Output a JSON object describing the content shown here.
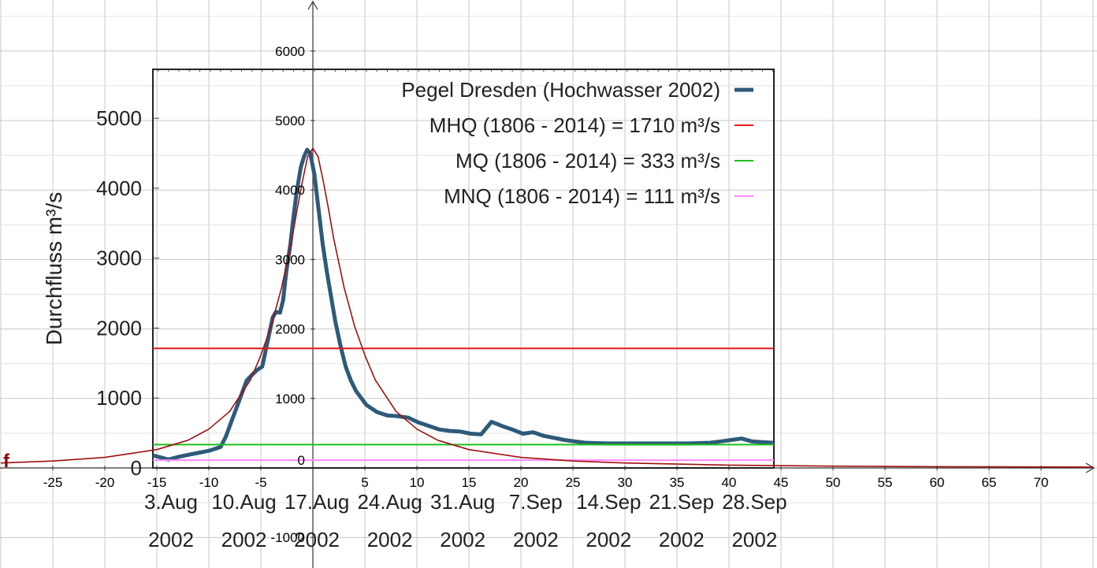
{
  "chart_data": [
    {
      "type": "line",
      "title": "",
      "ylabel": "Durchfluss m³/s",
      "xlabel": "",
      "xlim": [
        -15.5,
        44.1
      ],
      "ylim": [
        0,
        5700
      ],
      "yticks": [
        "0",
        "1000",
        "2000",
        "3000",
        "4000",
        "5000"
      ],
      "xtick_labels": [
        {
          "x": -15.5,
          "line1": "3.Aug",
          "line2": "2002"
        },
        {
          "x": -8.5,
          "line1": "10.Aug",
          "line2": "2002"
        },
        {
          "x": -1.5,
          "line1": "17.Aug",
          "line2": "2002"
        },
        {
          "x": 5.5,
          "line1": "24.Aug",
          "line2": "2002"
        },
        {
          "x": 12.5,
          "line1": "31.Aug",
          "line2": "2002"
        },
        {
          "x": 19.5,
          "line1": "7.Sep",
          "line2": "2002"
        },
        {
          "x": 26.5,
          "line1": "14.Sep",
          "line2": "2002"
        },
        {
          "x": 33.5,
          "line1": "21.Sep",
          "line2": "2002"
        },
        {
          "x": 40.5,
          "line1": "28.Sep",
          "line2": "2002"
        }
      ],
      "legend_position": "top-right",
      "grid": false,
      "series": [
        {
          "name": "Pegel Dresden (Hochwasser 2002)",
          "color": "#2e5a7a",
          "x": [
            -15.5,
            -14,
            -13,
            -12,
            -11,
            -10,
            -9,
            -8.5,
            -8,
            -7.5,
            -7,
            -6.5,
            -6,
            -5.5,
            -5,
            -4.5,
            -4,
            -3.7,
            -3.3,
            -3,
            -2.7,
            -2.3,
            -2,
            -1.7,
            -1.3,
            -1,
            -0.7,
            -0.4,
            0,
            0.4,
            0.8,
            1.2,
            1.6,
            2,
            2.5,
            3,
            3.5,
            4,
            4.5,
            5,
            6,
            7,
            8,
            9,
            10,
            11,
            12,
            13,
            14,
            15,
            16,
            17,
            18,
            19,
            20,
            21,
            22,
            23,
            24,
            25,
            26,
            28,
            30,
            32,
            34,
            36,
            38,
            39,
            40,
            41,
            42,
            43,
            44
          ],
          "y": [
            180,
            120,
            160,
            190,
            220,
            250,
            300,
            450,
            650,
            850,
            1050,
            1250,
            1330,
            1400,
            1450,
            1800,
            2150,
            2230,
            2220,
            2400,
            2800,
            3200,
            3600,
            3950,
            4300,
            4450,
            4550,
            4500,
            4200,
            3700,
            3200,
            2800,
            2450,
            2100,
            1750,
            1450,
            1250,
            1100,
            1000,
            900,
            800,
            750,
            740,
            720,
            650,
            600,
            550,
            530,
            520,
            490,
            480,
            660,
            600,
            550,
            490,
            510,
            460,
            430,
            400,
            380,
            360,
            350,
            350,
            350,
            350,
            350,
            360,
            380,
            400,
            420,
            380,
            370,
            360
          ]
        },
        {
          "name": "MHQ (1806 - 2014) = 1710 m³/s",
          "color": "#e11a1a",
          "x": [
            -15.5,
            44.1
          ],
          "y": [
            1710,
            1710
          ]
        },
        {
          "name": "MQ  (1806 - 2014) = 333 m³/s",
          "color": "#1ac01a",
          "x": [
            -15.5,
            44.1
          ],
          "y": [
            333,
            333
          ]
        },
        {
          "name": "MNQ (1806 - 2014) = 111 m³/s",
          "color": "#ff88ff",
          "x": [
            -15.5,
            44.1
          ],
          "y": [
            111,
            111
          ]
        }
      ]
    },
    {
      "type": "line",
      "title": "",
      "xlabel": "",
      "ylabel": "",
      "xlim": [
        -30,
        75
      ],
      "ylim": [
        -1500,
        7000
      ],
      "xticks": [
        "-25",
        "-20",
        "-15",
        "-10",
        "-5",
        "5",
        "10",
        "15",
        "20",
        "25",
        "30",
        "35",
        "40",
        "45",
        "50",
        "55",
        "60",
        "65",
        "70"
      ],
      "yticks": [
        "1000",
        "2000",
        "3000",
        "4000",
        "5000",
        "6000",
        "-1000"
      ],
      "origin_label": "0",
      "grid": true,
      "series": [
        {
          "name": "f",
          "color": "#a01010",
          "x": [
            -30,
            -25,
            -20,
            -15,
            -12,
            -10,
            -8,
            -6,
            -5,
            -4,
            -3,
            -2,
            -1.5,
            -1,
            -0.5,
            0,
            0.5,
            1,
            1.5,
            2,
            3,
            4,
            5,
            6,
            8,
            10,
            12,
            15,
            20,
            25,
            30,
            40,
            50,
            60,
            75
          ],
          "y": [
            71,
            100,
            152,
            264,
            399,
            559,
            813,
            1267,
            1623,
            2045,
            2599,
            3303,
            3730,
            4127,
            4482,
            4600,
            4482,
            4127,
            3730,
            3303,
            2599,
            2045,
            1623,
            1267,
            813,
            559,
            399,
            264,
            152,
            100,
            71,
            41,
            26,
            18,
            12
          ]
        }
      ]
    }
  ]
}
